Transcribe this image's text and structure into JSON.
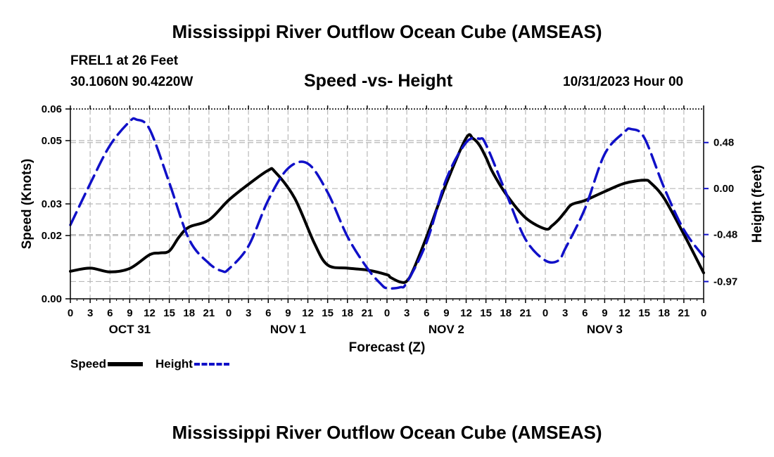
{
  "header": {
    "title_top": "Mississippi River Outflow Ocean Cube (AMSEAS)",
    "title_bottom": "Mississippi River Outflow Ocean Cube (AMSEAS)",
    "station": "FREL1 at 26 Feet",
    "coords": "30.1060N  90.4220W",
    "subtitle": "Speed -vs- Height",
    "datetime": "10/31/2023 Hour 00"
  },
  "legend": {
    "speed_label": "Speed",
    "height_label": "Height"
  },
  "colors": {
    "speed": "#000000",
    "height": "#1010c8",
    "grid": "#b8b8b8"
  },
  "chart_data": {
    "type": "line",
    "title": "Speed -vs- Height",
    "xlabel": "Forecast (Z)",
    "ylabel": "Speed (Knots)",
    "y2label": "Height (feet)",
    "xlim": [
      0,
      96
    ],
    "ylim": [
      0,
      0.06
    ],
    "y2lim": [
      -1.15,
      0.83
    ],
    "xtick_labels": [
      "0",
      "3",
      "6",
      "9",
      "12",
      "15",
      "18",
      "21",
      "0",
      "3",
      "6",
      "9",
      "12",
      "15",
      "18",
      "21",
      "0",
      "3",
      "6",
      "9",
      "12",
      "15",
      "18",
      "21",
      "0",
      "3",
      "6",
      "9",
      "12",
      "15",
      "18",
      "21",
      "0"
    ],
    "day_labels": [
      {
        "label": "OCT 31",
        "x": 9
      },
      {
        "label": "NOV 1",
        "x": 33
      },
      {
        "label": "NOV 2",
        "x": 57
      },
      {
        "label": "NOV 3",
        "x": 81
      }
    ],
    "yticks": [
      {
        "value": 0,
        "label": "0.00"
      },
      {
        "value": 0.02,
        "label": "0.02"
      },
      {
        "value": 0.03,
        "label": "0.03"
      },
      {
        "value": 0.05,
        "label": "0.05"
      },
      {
        "value": 0.06,
        "label": "0.06"
      }
    ],
    "y2ticks": [
      {
        "value": 0.48,
        "label": "0.48"
      },
      {
        "value": 0.0,
        "label": "0.00"
      },
      {
        "value": -0.48,
        "label": "-0.48"
      },
      {
        "value": -0.97,
        "label": "-0.97"
      }
    ],
    "series": [
      {
        "name": "Speed",
        "axis": "left",
        "style": "solid",
        "x": [
          0,
          3,
          6,
          9,
          12,
          13.5,
          15,
          16.5,
          18,
          21,
          24,
          27,
          30,
          31,
          34,
          37,
          39,
          42,
          45,
          48,
          48.5,
          50,
          51,
          52,
          54,
          57,
          60,
          61,
          62,
          63,
          64,
          66,
          69,
          72,
          73,
          74,
          75,
          76,
          78,
          81,
          84,
          87,
          88,
          90,
          93,
          96
        ],
        "y": [
          0.0087,
          0.0097,
          0.0085,
          0.0096,
          0.0139,
          0.0145,
          0.0151,
          0.0196,
          0.0227,
          0.0249,
          0.0312,
          0.0362,
          0.0406,
          0.0402,
          0.0318,
          0.0175,
          0.0107,
          0.0097,
          0.0091,
          0.0076,
          0.0068,
          0.0053,
          0.0056,
          0.0092,
          0.0196,
          0.0365,
          0.0508,
          0.0507,
          0.0486,
          0.0447,
          0.0401,
          0.0332,
          0.0256,
          0.0221,
          0.0231,
          0.025,
          0.0275,
          0.0298,
          0.0311,
          0.0339,
          0.0365,
          0.0375,
          0.0366,
          0.0318,
          0.0204,
          0.0082
        ]
      },
      {
        "name": "Height",
        "axis": "right",
        "style": "dashed",
        "x": [
          0,
          3,
          6,
          9,
          10,
          12,
          15,
          18,
          21,
          23,
          24,
          27,
          30,
          33,
          36,
          39,
          42,
          45,
          47,
          48,
          50,
          51,
          54,
          57,
          60,
          62,
          63,
          66,
          69,
          72,
          74,
          75,
          78,
          81,
          84,
          85,
          87,
          90,
          93,
          96
        ],
        "y": [
          -0.38,
          0.05,
          0.45,
          0.7,
          0.72,
          0.62,
          0.06,
          -0.53,
          -0.78,
          -0.86,
          -0.84,
          -0.6,
          -0.12,
          0.21,
          0.26,
          -0.04,
          -0.5,
          -0.83,
          -0.99,
          -1.04,
          -1.03,
          -0.98,
          -0.56,
          0.1,
          0.48,
          0.52,
          0.46,
          -0.04,
          -0.53,
          -0.75,
          -0.75,
          -0.63,
          -0.21,
          0.36,
          0.59,
          0.62,
          0.53,
          0.01,
          -0.43,
          -0.71
        ]
      }
    ]
  }
}
